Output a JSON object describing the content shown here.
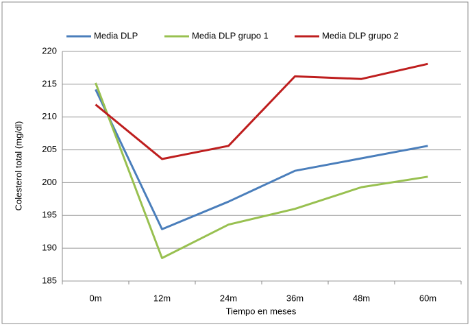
{
  "chart_data": {
    "type": "line",
    "categories": [
      "0m",
      "12m",
      "24m",
      "36m",
      "48m",
      "60m"
    ],
    "series": [
      {
        "name": "Media DLP",
        "color": "#4a7ebb",
        "values": [
          214.2,
          192.9,
          197.1,
          201.8,
          203.7,
          205.6
        ]
      },
      {
        "name": "Media DLP grupo 1",
        "color": "#98c050",
        "values": [
          215.2,
          188.5,
          193.6,
          196.0,
          199.3,
          200.9
        ]
      },
      {
        "name": "Media DLP grupo 2",
        "color": "#be1e1e",
        "values": [
          211.9,
          203.6,
          205.6,
          216.2,
          215.8,
          218.1
        ]
      }
    ],
    "xlabel": "Tiempo en meses",
    "ylabel": "Colesterol total (mg/dl)",
    "ylim": [
      185,
      220
    ],
    "yticks": [
      185,
      190,
      195,
      200,
      205,
      210,
      215,
      220
    ],
    "grid": true,
    "legend": "top"
  }
}
